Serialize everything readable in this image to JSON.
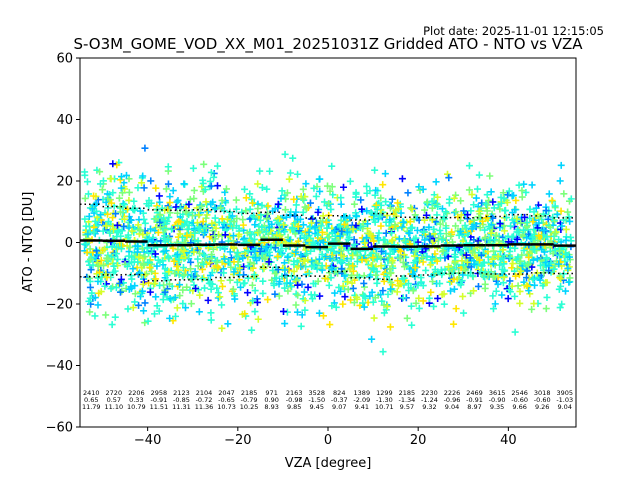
{
  "chart_data": {
    "type": "scatter",
    "title": "S-O3M_GOME_VOD_XX_M01_20251031Z Gridded ATO - NTO vs VZA",
    "plot_date": "Plot date: 2025-11-01 12:15:05",
    "xlabel": "VZA [degree]",
    "ylabel": "ATO - NTO [DU]",
    "xlim": [
      -55,
      55
    ],
    "ylim": [
      -60,
      60
    ],
    "xticks": [
      -40,
      -20,
      0,
      20,
      40
    ],
    "yticks": [
      -60,
      -40,
      -20,
      0,
      20,
      40,
      60
    ],
    "marker": "+",
    "colormap": [
      "#0000ff",
      "#0080ff",
      "#00d4ff",
      "#2affd4",
      "#7cff7a",
      "#d4ff2a",
      "#ffe600"
    ],
    "bins_x": [
      -52.5,
      -47.5,
      -42.5,
      -37.5,
      -32.5,
      -27.5,
      -22.5,
      -17.5,
      -12.5,
      -7.5,
      -2.5,
      2.5,
      7.5,
      12.5,
      17.5,
      22.5,
      27.5,
      32.5,
      37.5,
      42.5,
      47.5,
      52.5
    ],
    "counts": [
      "2410",
      "2720",
      "2206",
      "2958",
      "2123",
      "2104",
      "2047",
      "2185",
      "971",
      "2163",
      "3528",
      "824",
      "1389",
      "1299",
      "2185",
      "2230",
      "2226",
      "2469",
      "3615",
      "2546",
      "3018",
      "3905"
    ],
    "means": [
      "0.65",
      "0.57",
      "0.33",
      "-0.91",
      "-0.85",
      "-0.72",
      "-0.65",
      "-0.79",
      "0.90",
      "-0.98",
      "-1.50",
      "-0.37",
      "-2.09",
      "-1.30",
      "-1.34",
      "-1.24",
      "-0.96",
      "-0.91",
      "-0.90",
      "-0.60",
      "-0.60",
      "-1.03"
    ],
    "stds": [
      "11.79",
      "11.10",
      "10.79",
      "11.51",
      "11.31",
      "11.36",
      "10.73",
      "10.25",
      "8.93",
      "9.85",
      "9.45",
      "9.07",
      "9.41",
      "10.71",
      "9.57",
      "9.32",
      "9.04",
      "8.97",
      "9.35",
      "9.66",
      "9.26",
      "9.04"
    ]
  }
}
